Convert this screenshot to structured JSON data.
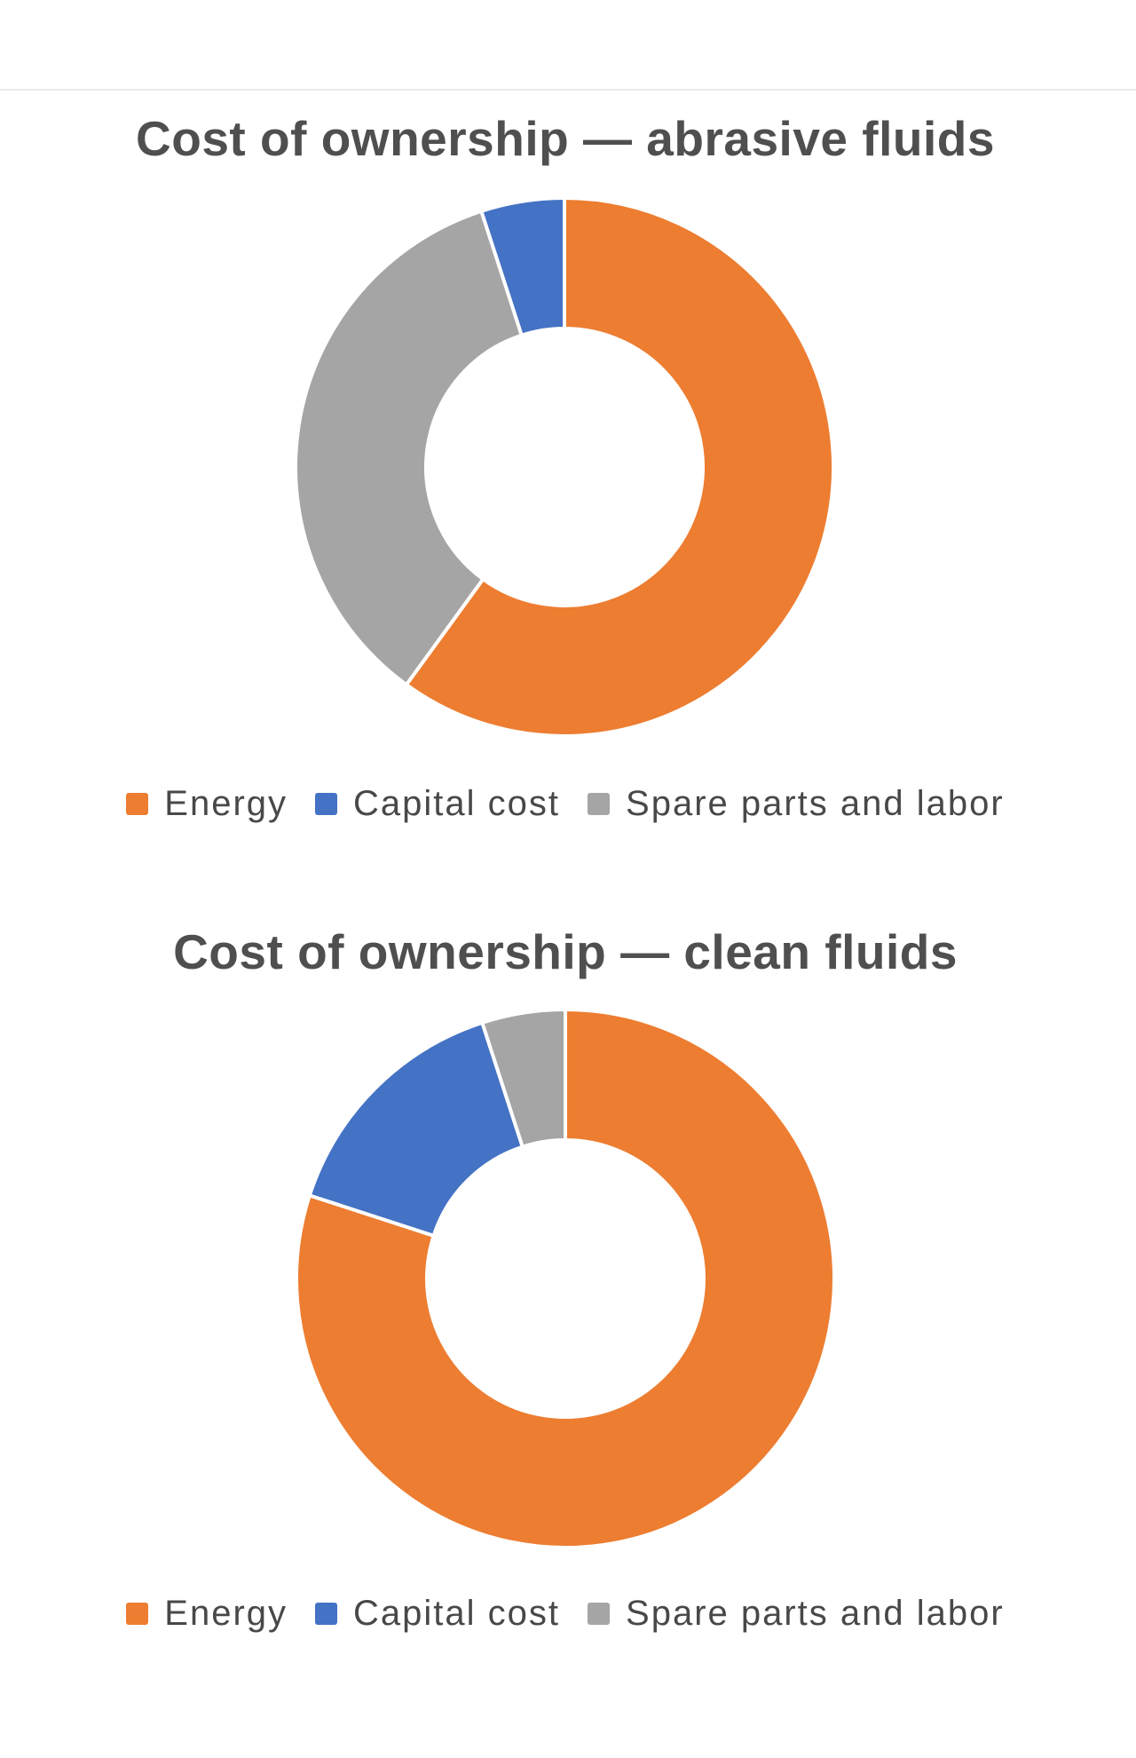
{
  "page": {
    "background": "#ffffff",
    "divider_color": "#eaeaea"
  },
  "palette": {
    "orange": "#ED7D31",
    "blue": "#4472C4",
    "gray": "#A5A5A5",
    "title_text": "#4f4f4f",
    "legend_text": "#484848"
  },
  "chart_data": [
    {
      "type": "donut",
      "title": "Cost of ownership — abrasive fluids",
      "legend": [
        "Energy",
        "Capital cost",
        "Spare parts and labor"
      ],
      "legend_colors": [
        "#ED7D31",
        "#4472C4",
        "#A5A5A5"
      ],
      "legend_position": "bottom",
      "units": "percent",
      "start_angle_deg": 0,
      "direction": "clockwise",
      "hole_ratio": 0.52,
      "segments_clockwise_from_top": [
        {
          "label": "Energy",
          "value_pct": 60,
          "color": "#ED7D31"
        },
        {
          "label": "Spare parts and labor",
          "value_pct": 35,
          "color": "#A5A5A5"
        },
        {
          "label": "Capital cost",
          "value_pct": 5,
          "color": "#4472C4"
        }
      ]
    },
    {
      "type": "donut",
      "title": "Cost of ownership — clean fluids",
      "legend": [
        "Energy",
        "Capital cost",
        "Spare parts and labor"
      ],
      "legend_colors": [
        "#ED7D31",
        "#4472C4",
        "#A5A5A5"
      ],
      "legend_position": "bottom",
      "units": "percent",
      "start_angle_deg": 0,
      "direction": "clockwise",
      "hole_ratio": 0.52,
      "segments_clockwise_from_top": [
        {
          "label": "Energy",
          "value_pct": 80,
          "color": "#ED7D31"
        },
        {
          "label": "Capital cost",
          "value_pct": 15,
          "color": "#4472C4"
        },
        {
          "label": "Spare parts and labor",
          "value_pct": 5,
          "color": "#A5A5A5"
        }
      ]
    }
  ]
}
